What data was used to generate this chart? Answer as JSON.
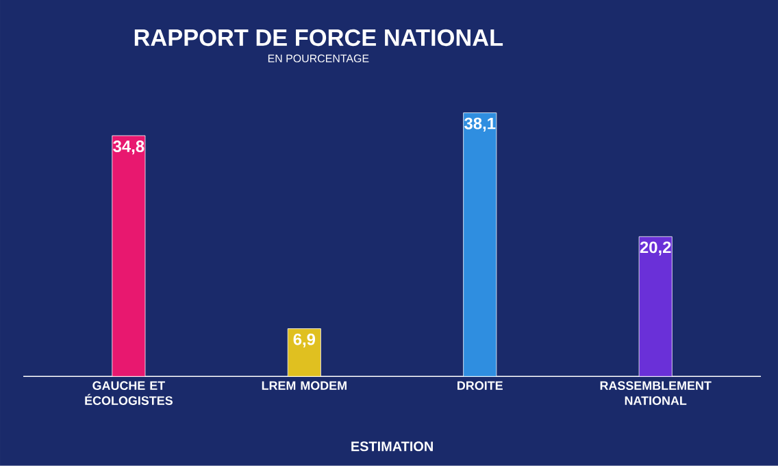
{
  "chart_data": {
    "type": "bar",
    "title": "RAPPORT DE FORCE NATIONAL",
    "subtitle": "EN POURCENTAGE",
    "categories": [
      "GAUCHE ET ÉCOLOGISTES",
      "LREM MODEM",
      "DROITE",
      "RASSEMBLEMENT NATIONAL"
    ],
    "values": [
      34.8,
      6.9,
      38.1,
      20.2
    ],
    "value_labels": [
      "34,8",
      "6,9",
      "38,1",
      "20,2"
    ],
    "colors": [
      "#e8186f",
      "#e0c020",
      "#2f8ee0",
      "#6a30d8"
    ],
    "annotations": [
      "ESTIMATION"
    ]
  }
}
